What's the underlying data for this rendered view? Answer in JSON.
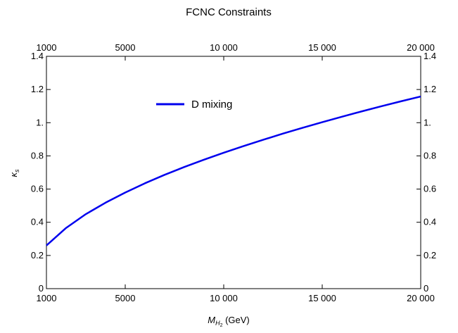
{
  "chart_data": {
    "type": "line",
    "title": "FCNC Constraints",
    "xlabel": {
      "main": "M",
      "sub": "H",
      "subsub": "2",
      "unit": " (GeV)"
    },
    "ylabel": {
      "main": "κ",
      "sub": "s"
    },
    "xlim": [
      1000,
      20000
    ],
    "ylim": [
      0,
      1.4
    ],
    "xticks": [
      {
        "value": 1000,
        "label": "1000"
      },
      {
        "value": 5000,
        "label": "5000"
      },
      {
        "value": 10000,
        "label": "10 000"
      },
      {
        "value": 15000,
        "label": "15 000"
      },
      {
        "value": 20000,
        "label": "20 000"
      }
    ],
    "yticks": [
      {
        "value": 0,
        "label": "0"
      },
      {
        "value": 0.2,
        "label": "0.2"
      },
      {
        "value": 0.4,
        "label": "0.4"
      },
      {
        "value": 0.6,
        "label": "0.6"
      },
      {
        "value": 0.8,
        "label": "0.8"
      },
      {
        "value": 1.0,
        "label": "1."
      },
      {
        "value": 1.2,
        "label": "1.2"
      },
      {
        "value": 1.4,
        "label": "1.4"
      }
    ],
    "legend_position": "upper-left-inside",
    "series": [
      {
        "name": "D mixing",
        "color": "#0000ee",
        "x": [
          1000,
          2000,
          3000,
          4000,
          5000,
          6000,
          7000,
          8000,
          9000,
          10000,
          11000,
          12000,
          13000,
          14000,
          15000,
          16000,
          17000,
          18000,
          19000,
          20000
        ],
        "y": [
          0.26,
          0.366,
          0.449,
          0.518,
          0.579,
          0.635,
          0.686,
          0.733,
          0.777,
          0.819,
          0.859,
          0.897,
          0.934,
          0.969,
          1.003,
          1.036,
          1.068,
          1.099,
          1.129,
          1.158
        ]
      }
    ]
  }
}
